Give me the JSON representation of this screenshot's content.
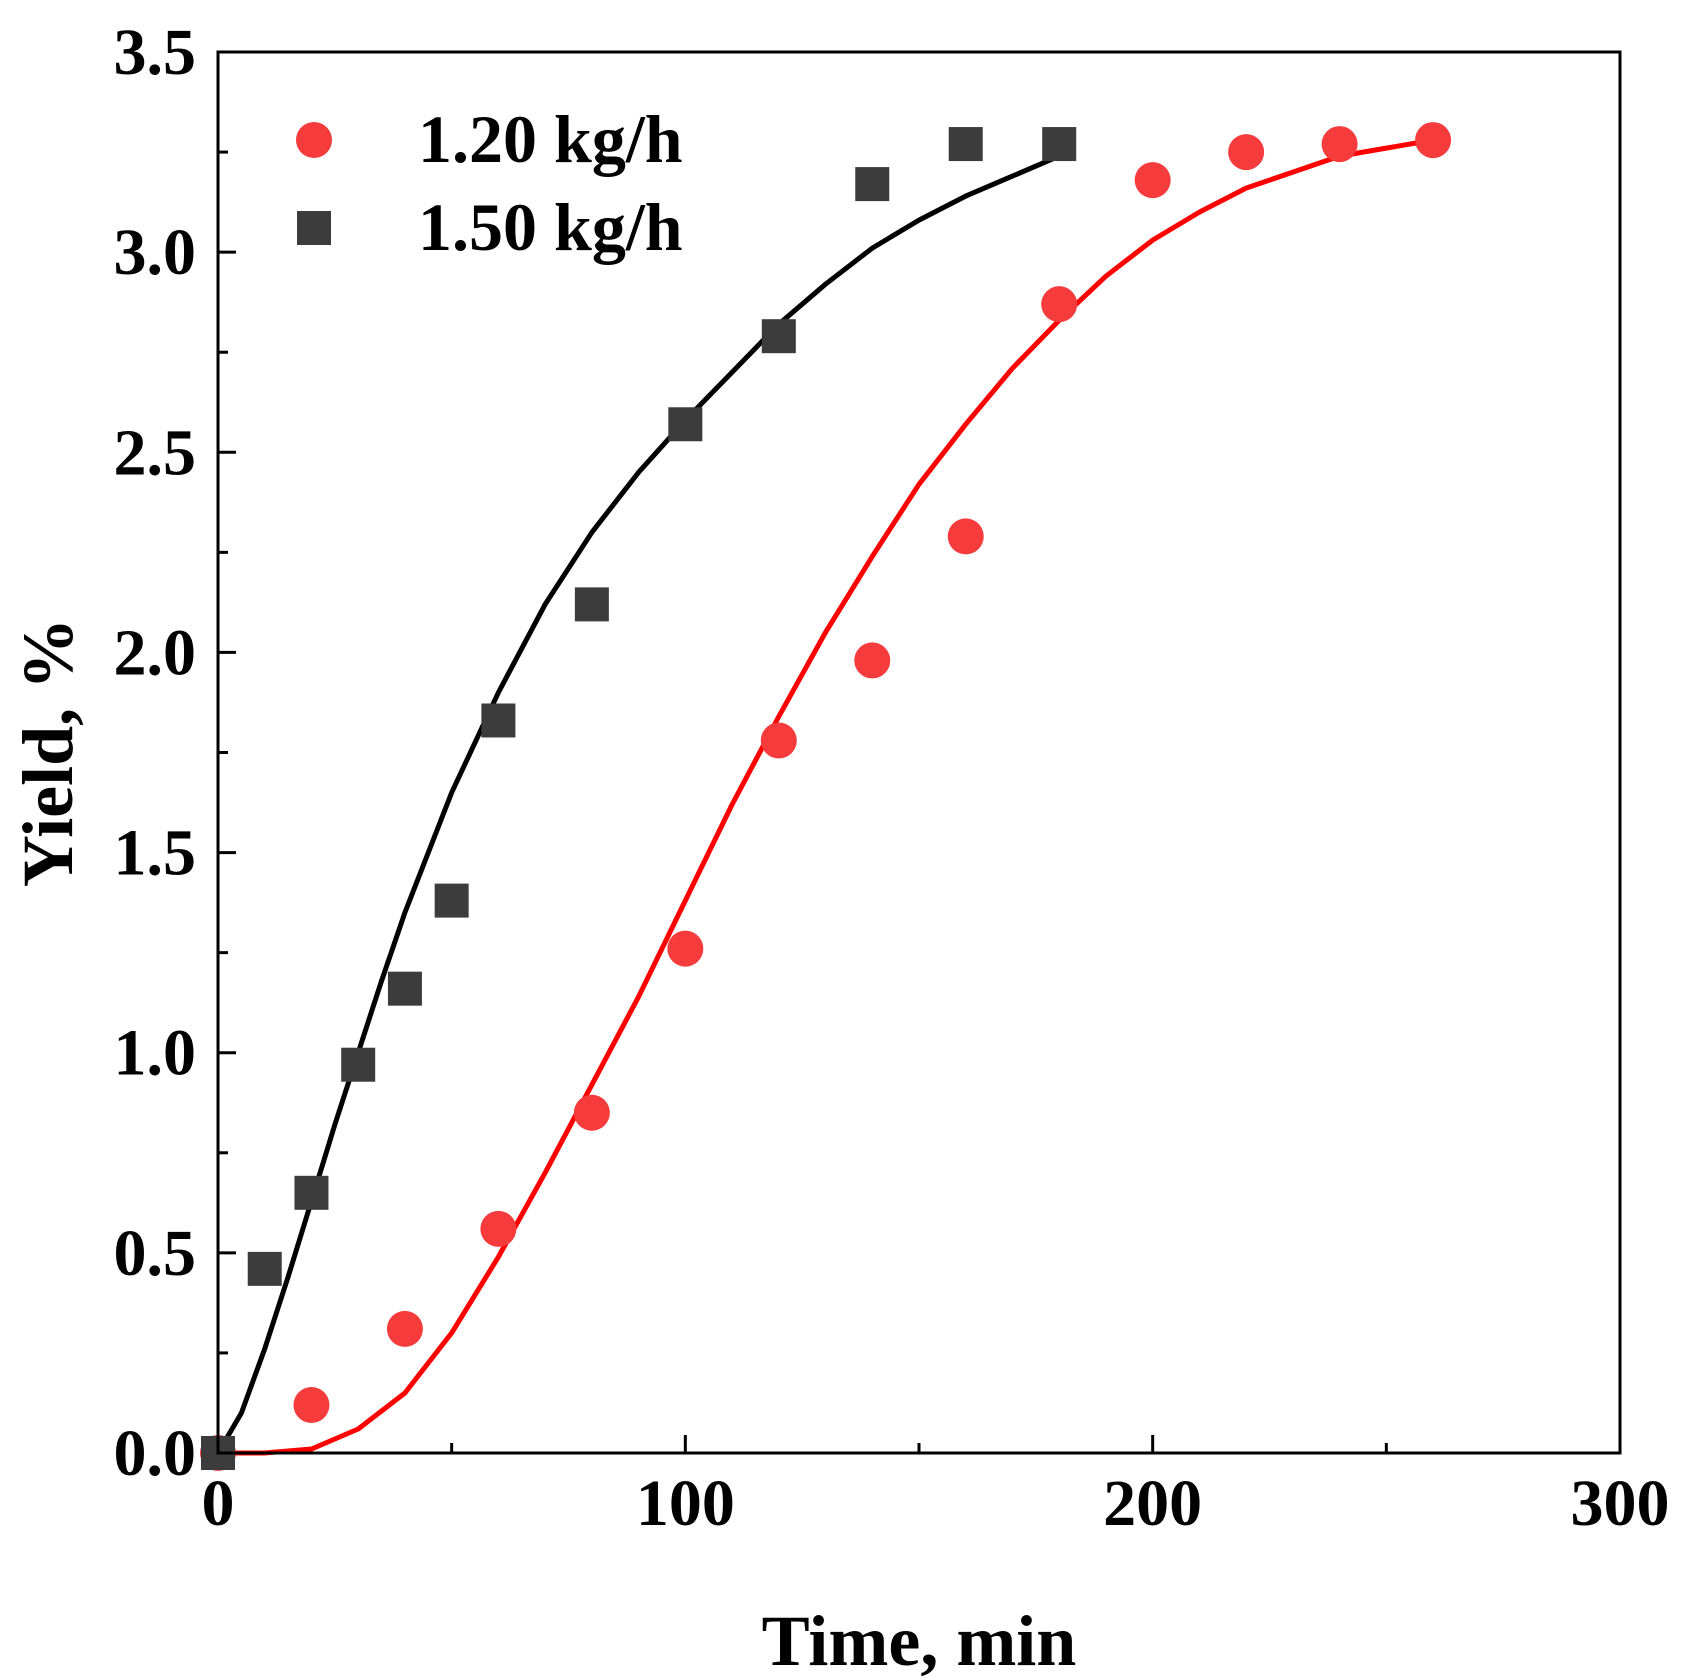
{
  "chart_data": {
    "type": "scatter",
    "title": "",
    "xlabel": "Time, min",
    "ylabel": "Yield, %",
    "xlim": [
      0,
      300
    ],
    "ylim": [
      0,
      3.5
    ],
    "x_ticks": [
      0,
      100,
      200,
      300
    ],
    "x_tick_labels": [
      "0",
      "100",
      "200",
      "300"
    ],
    "x_minor_ticks": [
      50,
      150,
      250
    ],
    "y_ticks": [
      0,
      0.5,
      1.0,
      1.5,
      2.0,
      2.5,
      3.0,
      3.5
    ],
    "y_tick_labels": [
      "0.0",
      "0.5",
      "1.0",
      "1.5",
      "2.0",
      "2.5",
      "3.0",
      "3.5"
    ],
    "y_minor_ticks": [
      0.25,
      0.75,
      1.25,
      1.75,
      2.25,
      2.75,
      3.25
    ],
    "grid": false,
    "legend_position": "top-left",
    "series": [
      {
        "name": "1.20 kg/h",
        "marker": "circle",
        "color": "#f53b3b",
        "x": [
          0,
          20,
          40,
          60,
          80,
          100,
          120,
          140,
          160,
          180,
          200,
          220,
          240,
          260
        ],
        "y": [
          0.0,
          0.12,
          0.31,
          0.56,
          0.85,
          1.26,
          1.78,
          1.98,
          2.29,
          2.87,
          3.18,
          3.25,
          3.27,
          3.28
        ]
      },
      {
        "name": "1.50 kg/h",
        "marker": "square",
        "color": "#3c3c3c",
        "x": [
          0,
          10,
          20,
          30,
          40,
          50,
          60,
          80,
          100,
          120,
          140,
          160,
          180
        ],
        "y": [
          0.0,
          0.46,
          0.65,
          0.97,
          1.16,
          1.38,
          1.83,
          2.12,
          2.57,
          2.79,
          3.17,
          3.27,
          3.27
        ]
      }
    ],
    "fit_curves": [
      {
        "series": "1.20 kg/h",
        "color": "#ff0000",
        "x": [
          0,
          10,
          20,
          30,
          40,
          50,
          60,
          70,
          80,
          90,
          100,
          110,
          120,
          130,
          140,
          150,
          160,
          170,
          180,
          190,
          200,
          210,
          220,
          230,
          240,
          250,
          260
        ],
        "y": [
          0.0,
          0.0,
          0.01,
          0.06,
          0.15,
          0.3,
          0.49,
          0.7,
          0.92,
          1.14,
          1.38,
          1.62,
          1.84,
          2.05,
          2.24,
          2.42,
          2.57,
          2.71,
          2.83,
          2.94,
          3.03,
          3.1,
          3.16,
          3.2,
          3.24,
          3.26,
          3.28
        ]
      },
      {
        "series": "1.50 kg/h",
        "color": "#000000",
        "x": [
          0,
          5,
          10,
          15,
          20,
          25,
          30,
          35,
          40,
          50,
          60,
          70,
          80,
          90,
          100,
          110,
          120,
          130,
          140,
          150,
          160,
          170,
          180
        ],
        "y": [
          0.0,
          0.1,
          0.26,
          0.44,
          0.63,
          0.82,
          1.0,
          1.18,
          1.35,
          1.65,
          1.9,
          2.12,
          2.3,
          2.45,
          2.58,
          2.7,
          2.82,
          2.92,
          3.01,
          3.08,
          3.14,
          3.19,
          3.24
        ]
      }
    ]
  }
}
